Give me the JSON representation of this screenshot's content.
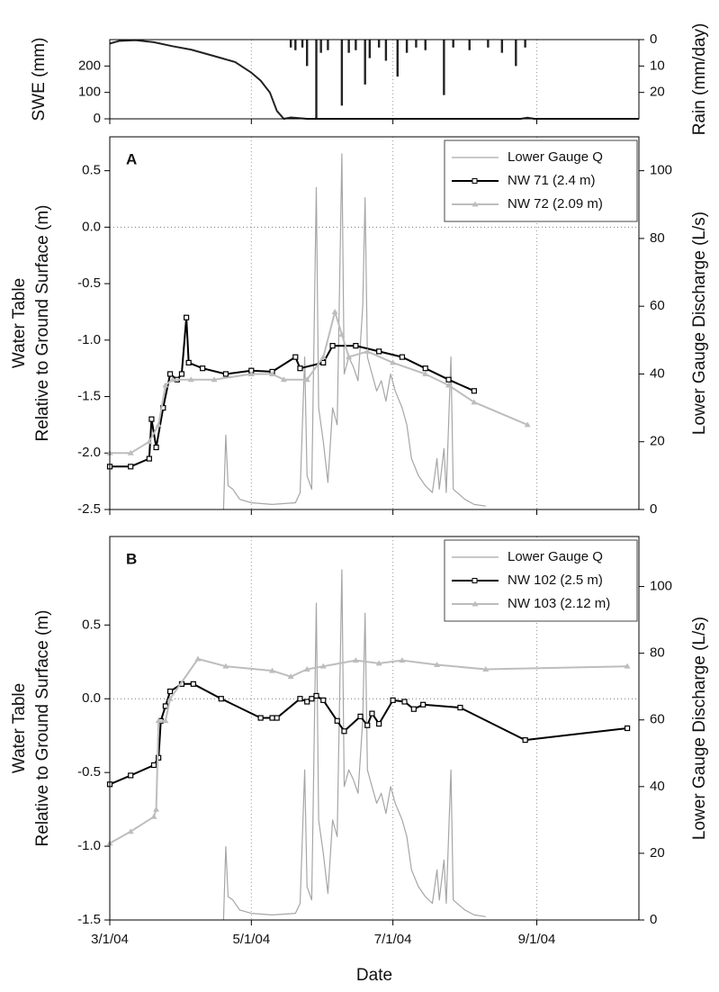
{
  "chart_data": [
    {
      "type": "combo",
      "ylabel": "SWE (mm)",
      "y2label": "Rain (mm/day)",
      "xlim": [
        "2004-03-01",
        "2004-10-15"
      ],
      "xticks": [
        "2004-03-01",
        "2004-05-01",
        "2004-07-01",
        "2004-09-01"
      ],
      "grid": true,
      "ylim": [
        0,
        300
      ],
      "yticks": [
        0,
        100,
        200
      ],
      "y2lim": [
        30,
        0
      ],
      "y2ticks": [
        0,
        10,
        20
      ],
      "series": [
        {
          "type": "line",
          "color": "#222222",
          "x": [
            "2004-03-01",
            "2004-03-05",
            "2004-03-12",
            "2004-03-20",
            "2004-03-28",
            "2004-04-05",
            "2004-04-12",
            "2004-04-18",
            "2004-04-24",
            "2004-05-01",
            "2004-05-05",
            "2004-05-09",
            "2004-05-12",
            "2004-05-15",
            "2004-05-18",
            "2004-05-21",
            "2004-05-25",
            "2004-08-25",
            "2004-08-28",
            "2004-08-31",
            "2004-10-15"
          ],
          "values": [
            285,
            295,
            298,
            290,
            275,
            262,
            245,
            230,
            215,
            175,
            145,
            100,
            30,
            0,
            5,
            3,
            0,
            0,
            4,
            0,
            0
          ]
        },
        {
          "type": "bar",
          "color": "#222222",
          "axis": "y2",
          "x": [
            "2004-05-18",
            "2004-05-20",
            "2004-05-23",
            "2004-05-25",
            "2004-05-29",
            "2004-05-31",
            "2004-06-03",
            "2004-06-09",
            "2004-06-12",
            "2004-06-15",
            "2004-06-19",
            "2004-06-21",
            "2004-06-25",
            "2004-06-28",
            "2004-07-03",
            "2004-07-07",
            "2004-07-11",
            "2004-07-15",
            "2004-07-23",
            "2004-07-27",
            "2004-08-03",
            "2004-08-11",
            "2004-08-17",
            "2004-08-23",
            "2004-08-27"
          ],
          "values": [
            3,
            4,
            3,
            10,
            30,
            5,
            4,
            25,
            5,
            4,
            17,
            7,
            3,
            8,
            14,
            5,
            3,
            4,
            21,
            3,
            4,
            3,
            5,
            10,
            3
          ]
        }
      ]
    },
    {
      "type": "combo",
      "panel_label": "A",
      "ylabel": [
        "Water Table",
        "Relative to Ground Surface (m)"
      ],
      "y2label": "Lower Gauge Discharge (L/s)",
      "xlim": [
        "2004-03-01",
        "2004-10-15"
      ],
      "xticks": [
        "2004-03-01",
        "2004-05-01",
        "2004-07-01",
        "2004-09-01"
      ],
      "grid": true,
      "zero_line": true,
      "ylim": [
        -2.5,
        0.8
      ],
      "yticks": [
        -2.5,
        -2.0,
        -1.5,
        -1.0,
        -0.5,
        0.0,
        0.5
      ],
      "y2lim": [
        0,
        110
      ],
      "y2ticks": [
        0,
        20,
        40,
        60,
        80,
        100
      ],
      "legend": "upper right",
      "series": [
        {
          "type": "line",
          "name": "Lower Gauge Q",
          "color": "#a6a6a6",
          "axis": "y2",
          "x": [
            "2004-04-19",
            "2004-04-20",
            "2004-04-21",
            "2004-04-23",
            "2004-04-26",
            "2004-05-01",
            "2004-05-10",
            "2004-05-20",
            "2004-05-22",
            "2004-05-24",
            "2004-05-25",
            "2004-05-27",
            "2004-05-29",
            "2004-05-30",
            "2004-06-01",
            "2004-06-03",
            "2004-06-05",
            "2004-06-07",
            "2004-06-09",
            "2004-06-10",
            "2004-06-12",
            "2004-06-14",
            "2004-06-16",
            "2004-06-18",
            "2004-06-19",
            "2004-06-20",
            "2004-06-22",
            "2004-06-24",
            "2004-06-26",
            "2004-06-28",
            "2004-06-30",
            "2004-07-02",
            "2004-07-05",
            "2004-07-07",
            "2004-07-09",
            "2004-07-12",
            "2004-07-15",
            "2004-07-18",
            "2004-07-20",
            "2004-07-21",
            "2004-07-23",
            "2004-07-24",
            "2004-07-26",
            "2004-07-27",
            "2004-08-01",
            "2004-08-05",
            "2004-08-10"
          ],
          "values": [
            0,
            22,
            7,
            6,
            3,
            2,
            1.5,
            2,
            5,
            45,
            10,
            6,
            95,
            30,
            20,
            8,
            30,
            25,
            105,
            40,
            45,
            42,
            38,
            60,
            92,
            45,
            40,
            35,
            38,
            32,
            40,
            35,
            30,
            25,
            15,
            10,
            7,
            5,
            15,
            6,
            18,
            5,
            45,
            6,
            3,
            1.5,
            1
          ]
        },
        {
          "type": "line",
          "name": "NW 71 (2.4 m)",
          "color": "#000000",
          "marker": "square",
          "x": [
            "2004-03-01",
            "2004-03-10",
            "2004-03-18",
            "2004-03-19",
            "2004-03-21",
            "2004-03-24",
            "2004-03-27",
            "2004-03-30",
            "2004-04-01",
            "2004-04-03",
            "2004-04-04",
            "2004-04-10",
            "2004-04-20",
            "2004-05-01",
            "2004-05-10",
            "2004-05-20",
            "2004-05-22",
            "2004-06-01",
            "2004-06-05",
            "2004-06-15",
            "2004-06-25",
            "2004-07-05",
            "2004-07-15",
            "2004-07-25",
            "2004-08-05"
          ],
          "values": [
            -2.12,
            -2.12,
            -2.05,
            -1.7,
            -1.95,
            -1.6,
            -1.3,
            -1.35,
            -1.3,
            -0.8,
            -1.2,
            -1.25,
            -1.3,
            -1.27,
            -1.28,
            -1.15,
            -1.25,
            -1.2,
            -1.05,
            -1.05,
            -1.1,
            -1.15,
            -1.25,
            -1.35,
            -1.45
          ]
        },
        {
          "type": "line",
          "name": "NW 72 (2.09 m)",
          "color": "#bdbdbd",
          "marker": "triangle",
          "x": [
            "2004-03-01",
            "2004-03-10",
            "2004-03-18",
            "2004-03-22",
            "2004-03-25",
            "2004-03-28",
            "2004-04-05",
            "2004-04-15",
            "2004-05-01",
            "2004-05-10",
            "2004-05-15",
            "2004-05-25",
            "2004-06-01",
            "2004-06-06",
            "2004-06-09",
            "2004-06-12",
            "2004-06-20",
            "2004-07-01",
            "2004-07-15",
            "2004-07-25",
            "2004-08-05",
            "2004-08-28"
          ],
          "values": [
            -2.0,
            -2.0,
            -1.9,
            -1.75,
            -1.4,
            -1.35,
            -1.35,
            -1.35,
            -1.3,
            -1.3,
            -1.35,
            -1.35,
            -1.15,
            -0.75,
            -0.95,
            -1.15,
            -1.1,
            -1.2,
            -1.3,
            -1.4,
            -1.55,
            -1.75
          ]
        }
      ]
    },
    {
      "type": "combo",
      "panel_label": "B",
      "ylabel": [
        "Water Table",
        "Relative to Ground Surface (m)"
      ],
      "y2label": "Lower Gauge Discharge (L/s)",
      "xlabel": "Date",
      "xlim": [
        "2004-03-01",
        "2004-10-15"
      ],
      "xticks": [
        {
          "value": "2004-03-01",
          "label": "3/1/04"
        },
        {
          "value": "2004-05-01",
          "label": "5/1/04"
        },
        {
          "value": "2004-07-01",
          "label": "7/1/04"
        },
        {
          "value": "2004-09-01",
          "label": "9/1/04"
        }
      ],
      "grid": true,
      "zero_line": true,
      "ylim": [
        -1.5,
        1.1
      ],
      "yticks": [
        -1.5,
        -1.0,
        -0.5,
        0.0,
        0.5
      ],
      "y2lim": [
        0,
        115
      ],
      "y2ticks": [
        0,
        20,
        40,
        60,
        80,
        100
      ],
      "legend": "upper right",
      "series": [
        {
          "type": "line",
          "name": "Lower Gauge Q",
          "color": "#a6a6a6",
          "axis": "y2",
          "x": [
            "2004-04-19",
            "2004-04-20",
            "2004-04-21",
            "2004-04-23",
            "2004-04-26",
            "2004-05-01",
            "2004-05-10",
            "2004-05-20",
            "2004-05-22",
            "2004-05-24",
            "2004-05-25",
            "2004-05-27",
            "2004-05-29",
            "2004-05-30",
            "2004-06-01",
            "2004-06-03",
            "2004-06-05",
            "2004-06-07",
            "2004-06-09",
            "2004-06-10",
            "2004-06-12",
            "2004-06-14",
            "2004-06-16",
            "2004-06-18",
            "2004-06-19",
            "2004-06-20",
            "2004-06-22",
            "2004-06-24",
            "2004-06-26",
            "2004-06-28",
            "2004-06-30",
            "2004-07-02",
            "2004-07-05",
            "2004-07-07",
            "2004-07-09",
            "2004-07-12",
            "2004-07-15",
            "2004-07-18",
            "2004-07-20",
            "2004-07-21",
            "2004-07-23",
            "2004-07-24",
            "2004-07-26",
            "2004-07-27",
            "2004-08-01",
            "2004-08-05",
            "2004-08-10"
          ],
          "values": [
            0,
            22,
            7,
            6,
            3,
            2,
            1.5,
            2,
            5,
            45,
            10,
            6,
            95,
            30,
            20,
            8,
            30,
            25,
            105,
            40,
            45,
            42,
            38,
            60,
            92,
            45,
            40,
            35,
            38,
            32,
            40,
            35,
            30,
            25,
            15,
            10,
            7,
            5,
            15,
            6,
            18,
            5,
            45,
            6,
            3,
            1.5,
            1
          ]
        },
        {
          "type": "line",
          "name": "NW 102 (2.5 m)",
          "color": "#000000",
          "marker": "square",
          "x": [
            "2004-03-01",
            "2004-03-10",
            "2004-03-20",
            "2004-03-22",
            "2004-03-23",
            "2004-03-25",
            "2004-03-27",
            "2004-04-01",
            "2004-04-06",
            "2004-04-18",
            "2004-05-05",
            "2004-05-10",
            "2004-05-12",
            "2004-05-22",
            "2004-05-25",
            "2004-05-27",
            "2004-05-29",
            "2004-06-01",
            "2004-06-07",
            "2004-06-10",
            "2004-06-17",
            "2004-06-20",
            "2004-06-22",
            "2004-06-25",
            "2004-07-01",
            "2004-07-06",
            "2004-07-10",
            "2004-07-14",
            "2004-07-30",
            "2004-08-27",
            "2004-10-10"
          ],
          "values": [
            -0.58,
            -0.52,
            -0.45,
            -0.4,
            -0.15,
            -0.05,
            0.05,
            0.1,
            0.1,
            0.0,
            -0.13,
            -0.13,
            -0.13,
            0.0,
            -0.02,
            0.0,
            0.02,
            -0.01,
            -0.15,
            -0.22,
            -0.12,
            -0.18,
            -0.1,
            -0.17,
            -0.01,
            -0.02,
            -0.07,
            -0.04,
            -0.06,
            -0.28,
            -0.2
          ]
        },
        {
          "type": "line",
          "name": "NW 103 (2.12 m)",
          "color": "#bdbdbd",
          "marker": "triangle",
          "x": [
            "2004-03-01",
            "2004-03-10",
            "2004-03-20",
            "2004-03-21",
            "2004-03-22",
            "2004-03-25",
            "2004-03-27",
            "2004-04-08",
            "2004-04-20",
            "2004-05-10",
            "2004-05-18",
            "2004-05-25",
            "2004-06-01",
            "2004-06-15",
            "2004-06-25",
            "2004-07-05",
            "2004-07-20",
            "2004-08-10",
            "2004-10-10"
          ],
          "values": [
            -0.98,
            -0.9,
            -0.8,
            -0.75,
            -0.15,
            -0.15,
            0.0,
            0.27,
            0.22,
            0.19,
            0.15,
            0.2,
            0.22,
            0.26,
            0.24,
            0.26,
            0.23,
            0.2,
            0.22
          ]
        }
      ]
    }
  ]
}
